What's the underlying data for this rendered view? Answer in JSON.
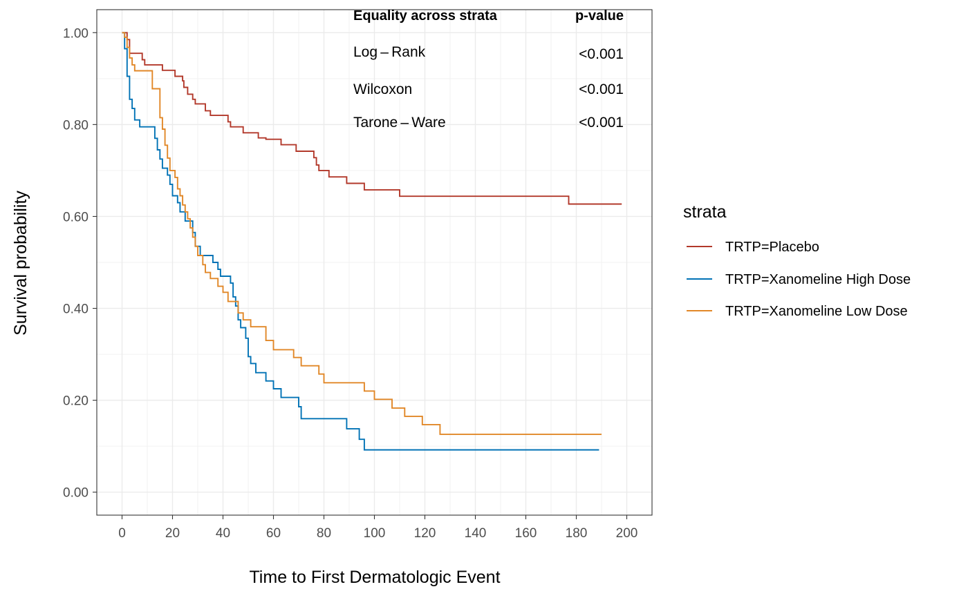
{
  "chart_data": {
    "type": "line",
    "subtype": "kaplan-meier step",
    "title": "",
    "xlabel": "Time to First Dermatologic Event",
    "ylabel": "Survival probability",
    "xlim": [
      -10,
      210
    ],
    "ylim": [
      -0.05,
      1.05
    ],
    "x_ticks": [
      0,
      20,
      40,
      60,
      80,
      100,
      120,
      140,
      160,
      180,
      200
    ],
    "x_tick_labels": [
      "0",
      "20",
      "40",
      "60",
      "80",
      "100",
      "120",
      "140",
      "160",
      "180",
      "200"
    ],
    "y_ticks": [
      0,
      0.2,
      0.4,
      0.6,
      0.8,
      1.0
    ],
    "y_tick_labels": [
      "0.00",
      "0.20",
      "0.40",
      "0.60",
      "0.80",
      "1.00"
    ],
    "grid": true,
    "legend": {
      "title": "strata",
      "placement": "right"
    },
    "series": [
      {
        "name": "TRTP=Placebo",
        "color": "#b2382a",
        "points": [
          [
            0,
            1.0
          ],
          [
            2,
            0.985
          ],
          [
            3,
            0.955
          ],
          [
            8,
            0.941
          ],
          [
            9,
            0.93
          ],
          [
            16,
            0.918
          ],
          [
            21,
            0.905
          ],
          [
            24,
            0.895
          ],
          [
            24.5,
            0.881
          ],
          [
            26,
            0.866
          ],
          [
            28,
            0.855
          ],
          [
            29,
            0.845
          ],
          [
            33,
            0.83
          ],
          [
            35,
            0.82
          ],
          [
            42,
            0.806
          ],
          [
            43,
            0.795
          ],
          [
            48,
            0.782
          ],
          [
            54,
            0.771
          ],
          [
            57,
            0.768
          ],
          [
            63,
            0.756
          ],
          [
            69,
            0.742
          ],
          [
            76,
            0.728
          ],
          [
            77,
            0.712
          ],
          [
            78,
            0.7
          ],
          [
            82,
            0.686
          ],
          [
            89,
            0.672
          ],
          [
            96,
            0.658
          ],
          [
            110,
            0.644
          ],
          [
            177,
            0.627
          ],
          [
            198,
            0.627
          ]
        ]
      },
      {
        "name": "TRTP=Xanomeline High Dose",
        "color": "#0072b5",
        "points": [
          [
            0,
            1.0
          ],
          [
            1,
            0.965
          ],
          [
            2,
            0.905
          ],
          [
            3,
            0.855
          ],
          [
            4,
            0.835
          ],
          [
            5,
            0.81
          ],
          [
            7,
            0.795
          ],
          [
            13,
            0.77
          ],
          [
            14,
            0.745
          ],
          [
            15,
            0.725
          ],
          [
            16,
            0.705
          ],
          [
            18,
            0.69
          ],
          [
            19,
            0.67
          ],
          [
            20,
            0.645
          ],
          [
            22,
            0.63
          ],
          [
            23,
            0.61
          ],
          [
            25,
            0.59
          ],
          [
            28,
            0.565
          ],
          [
            29,
            0.535
          ],
          [
            31,
            0.515
          ],
          [
            36,
            0.5
          ],
          [
            38,
            0.485
          ],
          [
            39,
            0.47
          ],
          [
            43,
            0.455
          ],
          [
            44,
            0.425
          ],
          [
            45,
            0.405
          ],
          [
            46,
            0.375
          ],
          [
            47,
            0.358
          ],
          [
            49,
            0.335
          ],
          [
            50,
            0.295
          ],
          [
            51,
            0.28
          ],
          [
            53,
            0.26
          ],
          [
            57,
            0.242
          ],
          [
            60,
            0.225
          ],
          [
            63,
            0.206
          ],
          [
            70,
            0.186
          ],
          [
            71,
            0.16
          ],
          [
            89,
            0.138
          ],
          [
            94,
            0.115
          ],
          [
            96,
            0.092
          ],
          [
            189,
            0.092
          ]
        ]
      },
      {
        "name": "TRTP=Xanomeline Low Dose",
        "color": "#e18727",
        "points": [
          [
            0,
            1.0
          ],
          [
            1,
            0.99
          ],
          [
            2,
            0.968
          ],
          [
            3,
            0.945
          ],
          [
            4,
            0.93
          ],
          [
            5,
            0.917
          ],
          [
            12,
            0.878
          ],
          [
            15,
            0.815
          ],
          [
            16,
            0.79
          ],
          [
            17,
            0.755
          ],
          [
            18,
            0.727
          ],
          [
            19,
            0.7
          ],
          [
            21,
            0.685
          ],
          [
            22,
            0.66
          ],
          [
            23,
            0.645
          ],
          [
            24,
            0.625
          ],
          [
            25,
            0.61
          ],
          [
            26,
            0.595
          ],
          [
            27,
            0.575
          ],
          [
            28,
            0.555
          ],
          [
            29,
            0.535
          ],
          [
            30,
            0.515
          ],
          [
            32,
            0.495
          ],
          [
            33,
            0.478
          ],
          [
            35,
            0.465
          ],
          [
            38,
            0.448
          ],
          [
            40,
            0.435
          ],
          [
            42,
            0.415
          ],
          [
            46,
            0.39
          ],
          [
            48,
            0.375
          ],
          [
            51,
            0.36
          ],
          [
            57,
            0.33
          ],
          [
            60,
            0.31
          ],
          [
            68,
            0.293
          ],
          [
            71,
            0.275
          ],
          [
            78,
            0.257
          ],
          [
            80,
            0.238
          ],
          [
            96,
            0.22
          ],
          [
            100,
            0.202
          ],
          [
            107,
            0.183
          ],
          [
            112,
            0.165
          ],
          [
            119,
            0.147
          ],
          [
            126,
            0.126
          ],
          [
            190,
            0.126
          ]
        ]
      }
    ],
    "table": {
      "headers": [
        "Equality across strata",
        "p-value"
      ],
      "rows": [
        [
          "Log – Rank",
          "<0.001"
        ],
        [
          "Wilcoxon",
          "<0.001"
        ],
        [
          "Tarone – Ware",
          "<0.001"
        ]
      ]
    }
  }
}
